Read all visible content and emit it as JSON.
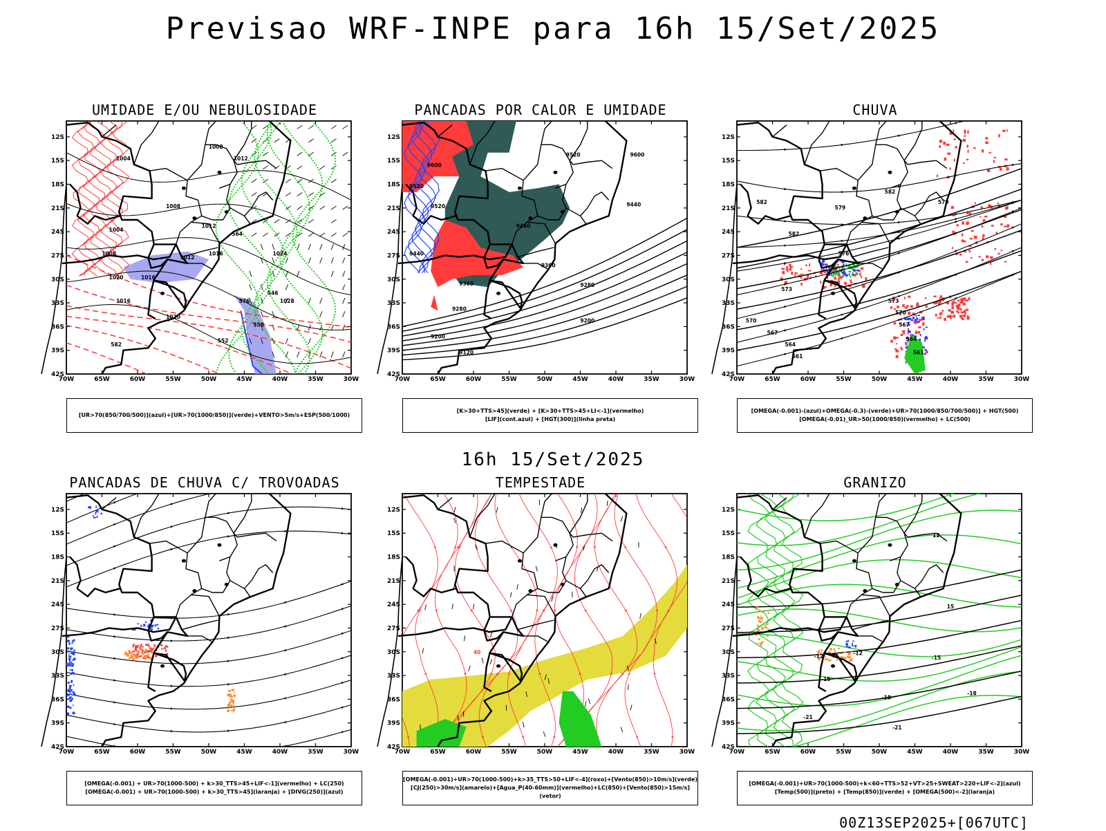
{
  "title": "Previsao WRF-INPE  para 16h 15/Set/2025",
  "mid_title": "16h 15/Set/2025",
  "footer": "00Z13SEP2025+[067UTC]",
  "lat_ticks": [
    "12S",
    "15S",
    "18S",
    "21S",
    "24S",
    "27S",
    "30S",
    "33S",
    "36S",
    "39S",
    "42S"
  ],
  "lon_ticks": [
    "70W",
    "65W",
    "60W",
    "55W",
    "50W",
    "45W",
    "40W",
    "35W",
    "30W"
  ],
  "colors": {
    "red": "#ff3b3b",
    "green": "#22cc22",
    "blue": "#2244ff",
    "lightblue": "#9999ee",
    "darkgreen": "#2f5a56",
    "yellow": "#e3dc3c",
    "orange": "#ff8a2a"
  },
  "panels": [
    {
      "title": "UMIDADE E/OU NEBULOSIDADE",
      "legend": [
        "[UR>70(850/700/500)](azul)+[UR>70(1000/850)](verde)+VENTO>5m/s+ESP(500/1000)"
      ],
      "contour_labels": [
        "1008",
        "1004",
        "1012",
        "1008",
        "1012",
        "1016",
        "1004",
        "1008",
        "1012",
        "1016",
        "1020",
        "1016",
        "1024",
        "1020",
        "1028",
        "576",
        "564",
        "558",
        "552",
        "546",
        "582"
      ]
    },
    {
      "title": "PANCADAS POR CALOR E UMIDADE",
      "legend": [
        "[K>30+TTS>45](verde) + [K>30+TTS>45+LI<-1](vermelho)",
        "[LIF](cont.azul) + [HGT(300)](linha preta)"
      ],
      "contour_labels": [
        "9600",
        "9600",
        "9520",
        "9520",
        "9520",
        "9440",
        "9440",
        "9440",
        "9360",
        "9360",
        "9280",
        "9280",
        "9200",
        "9200",
        "9120"
      ]
    },
    {
      "title": "CHUVA",
      "legend": [
        "[OMEGA(-0.001)-(azul)+OMEGA(-0.3)-(verde)+UR>70(1000/850/700/500)] + HGT(500)",
        "[OMEGA(-0.01)_UR>50(1000/850)(vermelho) + LC(500)"
      ],
      "contour_labels": [
        "582",
        "582",
        "579",
        "582",
        "576",
        "573",
        "570",
        "567",
        "564",
        "561",
        "573",
        "570",
        "567",
        "564",
        "561",
        "579"
      ]
    },
    {
      "title": "PANCADAS DE CHUVA C/ TROVOADAS",
      "legend": [
        "[OMEGA(-0.001) + UR>70(1000-500) + k>30_TTS>45+LIF<-1](vermelho) + LC(250)",
        "[OMEGA(-0.001) + UR>70(1000-500) + k>30_TTS>45](laranja) + [DIVG(250)](azul)"
      ],
      "contour_labels": []
    },
    {
      "title": "TEMPESTADE",
      "legend": [
        "[OMEGA(-0.001)+UR>70(1000-500)+k>35_TTS>50+LIF<-4](roxo)+[Vento(850)>10m/s](verde)",
        "[CJ(250)>30m/s](amarelo)+[Agua_P(40-60mm)](vermelho)+LC(850)+[Vento(850)>15m/s](vetor)"
      ],
      "contour_labels": [
        "40"
      ]
    },
    {
      "title": "GRANIZO",
      "legend": [
        "[OMEGA(-0.001)+UR>70(1000-500)+k<60+TTS>52+VT>25+SWEAT>220+LIF<-2](azul)",
        "[Temp(500)](preto) + [Temp(850)](verde) + [OMEGA(500)<-2](laranja)"
      ],
      "contour_labels": [
        "-12",
        "-12",
        "-15",
        "-15",
        "-18",
        "-18",
        "-21",
        "-21",
        "12",
        "15"
      ]
    }
  ]
}
